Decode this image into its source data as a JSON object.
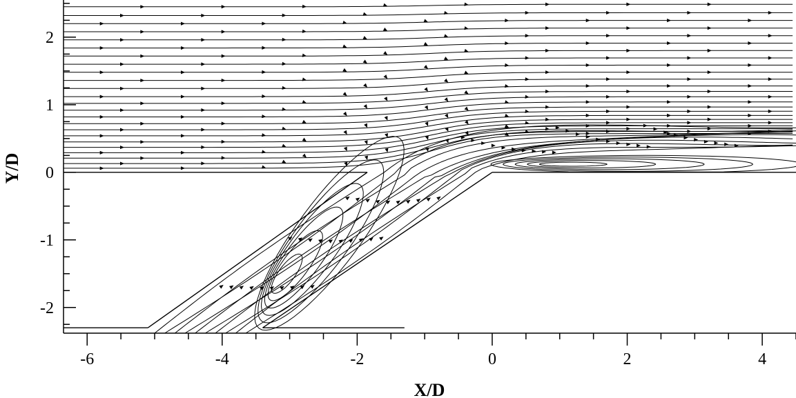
{
  "chart_data": {
    "type": "line",
    "chart_kind": "streamline flow plot",
    "xlabel": "X/D",
    "ylabel": "Y/D",
    "xlim": [
      -6.35,
      4.5
    ],
    "ylim": [
      -2.38,
      2.55
    ],
    "x_ticks": [
      -6,
      -4,
      -2,
      0,
      2,
      4
    ],
    "x_tick_labels": [
      "-6",
      "-4",
      "-2",
      "0",
      "2",
      "4"
    ],
    "y_ticks": [
      -2,
      -1,
      0,
      1,
      2
    ],
    "y_tick_labels": [
      "-2",
      "-1",
      "0",
      "1",
      "2"
    ],
    "grid": false,
    "legend": "none",
    "line_color": "#000000",
    "geometry": {
      "plate_left": [
        [
          -6.35,
          0
        ],
        [
          -1.85,
          0
        ]
      ],
      "plate_right": [
        [
          0,
          0
        ],
        [
          4.5,
          0
        ]
      ],
      "hole_upstream_wall": [
        [
          -1.85,
          0
        ],
        [
          -5.1,
          -2.3
        ]
      ],
      "hole_downstream_wall": [
        [
          0,
          0
        ],
        [
          -3.4,
          -2.3
        ]
      ],
      "plenum_wall": [
        [
          -6.35,
          -2.3
        ],
        [
          -5.1,
          -2.3
        ]
      ],
      "plenum_wall_2": [
        [
          -3.4,
          -2.3
        ],
        [
          -1.3,
          -2.3
        ]
      ]
    },
    "freestream_y": [
      0.06,
      0.13,
      0.21,
      0.29,
      0.37,
      0.45,
      0.54,
      0.63,
      0.72,
      0.82,
      0.92,
      1.02,
      1.12,
      1.24,
      1.36,
      1.48,
      1.6,
      1.72,
      1.84,
      1.96,
      2.08,
      2.2,
      2.32,
      2.45
    ],
    "jet_streamlines": [
      {
        "start": [
          -5.0,
          -2.38
        ],
        "mid": [
          -1.6,
          0.0
        ],
        "end_y": 0.7
      },
      {
        "start": [
          -4.85,
          -2.38
        ],
        "mid": [
          -1.45,
          -0.02
        ],
        "end_y": 0.65
      },
      {
        "start": [
          -4.7,
          -2.38
        ],
        "mid": [
          -1.3,
          -0.04
        ],
        "end_y": 0.6
      },
      {
        "start": [
          -4.55,
          -2.38
        ],
        "mid": [
          -1.15,
          -0.06
        ],
        "end_y": 0.56
      },
      {
        "start": [
          -4.4,
          -2.38
        ],
        "mid": [
          -1.0,
          -0.07
        ],
        "end_y": 0.52
      },
      {
        "start": [
          -4.25,
          -2.38
        ],
        "mid": [
          -0.85,
          -0.07
        ],
        "end_y": 0.49
      },
      {
        "start": [
          -4.1,
          -2.38
        ],
        "mid": [
          -0.7,
          -0.06
        ],
        "end_y": 0.46
      },
      {
        "start": [
          -3.95,
          -2.38
        ],
        "mid": [
          -0.55,
          -0.04
        ],
        "end_y": 0.44
      },
      {
        "start": [
          -3.8,
          -2.38
        ],
        "mid": [
          -0.4,
          -0.02
        ],
        "end_y": 0.42
      },
      {
        "start": [
          -3.65,
          -2.38
        ],
        "mid": [
          -0.25,
          0.0
        ],
        "end_y": 0.4
      }
    ],
    "vortex_centers": [
      [
        -3.2,
        -1.65
      ],
      [
        0.9,
        0.12
      ]
    ]
  }
}
